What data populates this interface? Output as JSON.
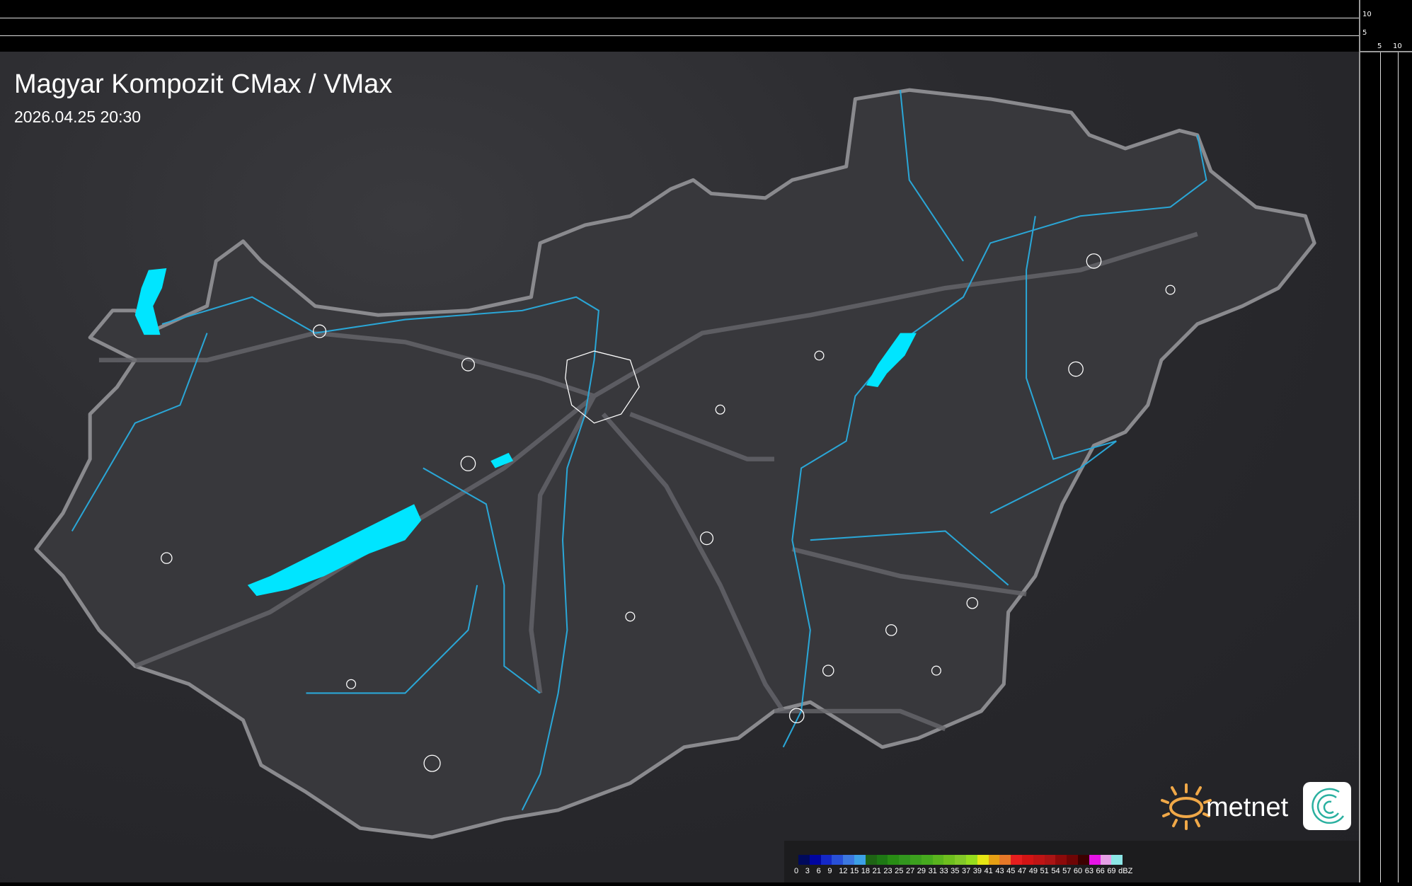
{
  "title": "Magyar Kompozit CMax / VMax",
  "datetime": "2026.04.25 20:30",
  "axis_ticks": {
    "left_scale": [
      "10",
      "5"
    ],
    "bottom_scale": [
      "5",
      "10"
    ]
  },
  "logo": {
    "text": "metnet"
  },
  "legend": {
    "unit": "dBZ",
    "labels": [
      "0",
      "3",
      "6",
      "9",
      "12",
      "15",
      "18",
      "21",
      "23",
      "25",
      "27",
      "29",
      "31",
      "33",
      "35",
      "37",
      "39",
      "41",
      "43",
      "45",
      "47",
      "49",
      "51",
      "54",
      "57",
      "60",
      "63",
      "66",
      "69"
    ],
    "colors": [
      "#000a5c",
      "#0005a0",
      "#1428c8",
      "#2850d8",
      "#3c78e0",
      "#3ca0e6",
      "#1e6414",
      "#1e7814",
      "#288c14",
      "#32961e",
      "#3ca01e",
      "#46aa1e",
      "#5ab41e",
      "#6ebe1e",
      "#82c828",
      "#96dc1e",
      "#e6e614",
      "#e6a014",
      "#e67828",
      "#e61e1e",
      "#d21414",
      "#be1414",
      "#aa1414",
      "#8c0a0a",
      "#6e0505",
      "#3c0000",
      "#e614e6",
      "#e6a0e6",
      "#8ce6e6"
    ]
  },
  "colors": {
    "water": "#00e5ff",
    "river": "#2aa6d6",
    "border": "#8a8a8e",
    "roads": "#6a6a70"
  }
}
